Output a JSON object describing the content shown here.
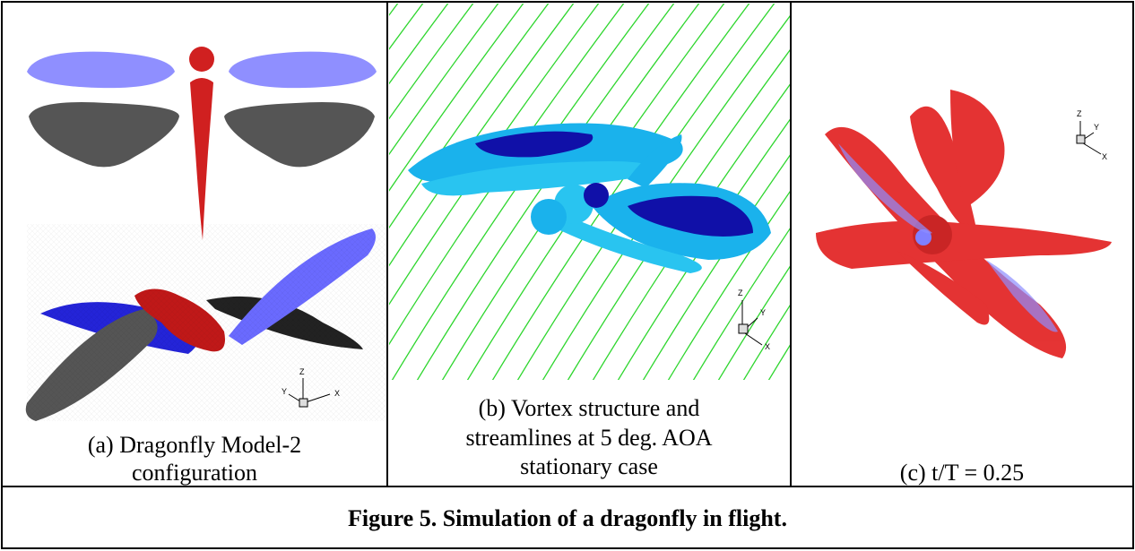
{
  "panels": [
    {
      "caption": [
        "(a) Dragonfly Model-2",
        "configuration"
      ],
      "axes": {
        "z": "Z",
        "y": "Y",
        "x": "X"
      }
    },
    {
      "caption": [
        "(b) Vortex structure and",
        "streamlines at 5 deg. AOA",
        "stationary case"
      ],
      "axes": {
        "z": "Z",
        "y": "Y",
        "x": "X"
      }
    },
    {
      "caption": [
        "(c) t/T = 0.25"
      ],
      "axes": {
        "z": "Z",
        "y": "Y",
        "x": "X"
      }
    }
  ],
  "figure_caption": "Figure 5. Simulation of a dragonfly in flight."
}
